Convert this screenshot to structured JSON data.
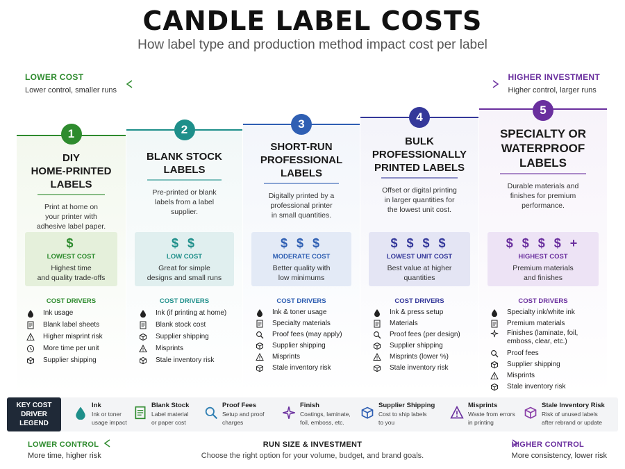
{
  "title": "CANDLE LABEL COSTS",
  "subtitle": "How label type and production method impact cost per label",
  "axis_top": {
    "left_label": "LOWER COST",
    "left_sub": "Lower control, smaller runs",
    "right_label": "HIGHER INVESTMENT",
    "right_sub": "Higher control, larger runs"
  },
  "drivers_title": "COST DRIVERS",
  "cards": [
    {
      "number": "1",
      "name_lines": [
        "DIY",
        "HOME-PRINTED",
        "LABELS"
      ],
      "description_lines": [
        "Print at home on",
        "your printer with",
        "adhesive label paper."
      ],
      "dollars": "$",
      "cost_label": "LOWEST COST",
      "cost_desc_lines": [
        "Highest time",
        "and quality trade-offs"
      ],
      "drivers": [
        {
          "icon": "ink-drop-icon",
          "text": "Ink usage"
        },
        {
          "icon": "label-sheet-icon",
          "text": "Blank label sheets"
        },
        {
          "icon": "warning-icon",
          "text": "Higher misprint risk"
        },
        {
          "icon": "clock-icon",
          "text": "More time per unit"
        },
        {
          "icon": "box-icon",
          "text": "Supplier shipping"
        }
      ],
      "color": "#2e8b2e",
      "bg": "#f3f8ee",
      "box_bg": "#e5f0db"
    },
    {
      "number": "2",
      "name_lines": [
        "BLANK STOCK",
        "LABELS"
      ],
      "description_lines": [
        "Pre-printed or blank",
        "labels from a label",
        "supplier."
      ],
      "dollars": "$ $",
      "cost_label": "LOW COST",
      "cost_desc_lines": [
        "Great for simple",
        "designs and small runs"
      ],
      "drivers": [
        {
          "icon": "ink-drop-icon",
          "text": "Ink (if printing at home)"
        },
        {
          "icon": "label-sheet-icon",
          "text": "Blank stock cost"
        },
        {
          "icon": "box-icon",
          "text": "Supplier shipping"
        },
        {
          "icon": "warning-icon",
          "text": "Misprints"
        },
        {
          "icon": "box-icon",
          "text": "Stale inventory risk"
        }
      ],
      "color": "#1e8f8a",
      "bg": "#f2f8f8",
      "box_bg": "#e0efef"
    },
    {
      "number": "3",
      "name_lines": [
        "SHORT-RUN",
        "PROFESSIONAL",
        "LABELS"
      ],
      "description_lines": [
        "Digitally printed by a",
        "professional printer",
        "in small quantities."
      ],
      "dollars": "$ $ $",
      "cost_label": "MODERATE COST",
      "cost_desc_lines": [
        "Better quality with",
        "low minimums"
      ],
      "drivers": [
        {
          "icon": "ink-drop-icon",
          "text": "Ink & toner usage"
        },
        {
          "icon": "label-sheet-icon",
          "text": "Specialty materials"
        },
        {
          "icon": "magnifier-icon",
          "text": "Proof fees (may apply)"
        },
        {
          "icon": "box-icon",
          "text": "Supplier shipping"
        },
        {
          "icon": "warning-icon",
          "text": "Misprints"
        },
        {
          "icon": "box-icon",
          "text": "Stale inventory risk"
        }
      ],
      "color": "#2f5fb3",
      "bg": "#f3f6fb",
      "box_bg": "#e3eaf6"
    },
    {
      "number": "4",
      "name_lines": [
        "BULK",
        "PROFESSIONALLY",
        "PRINTED LABELS"
      ],
      "description_lines": [
        "Offset or digital printing",
        "in larger quantities for",
        "the lowest unit cost."
      ],
      "dollars": "$ $ $ $",
      "cost_label": "LOWEST UNIT COST",
      "cost_desc_lines": [
        "Best value at higher",
        "quantities"
      ],
      "drivers": [
        {
          "icon": "ink-drop-icon",
          "text": "Ink & press setup"
        },
        {
          "icon": "label-sheet-icon",
          "text": "Materials"
        },
        {
          "icon": "magnifier-icon",
          "text": "Proof fees (per design)"
        },
        {
          "icon": "box-icon",
          "text": "Supplier shipping"
        },
        {
          "icon": "warning-icon",
          "text": "Misprints (lower %)"
        },
        {
          "icon": "box-icon",
          "text": "Stale inventory risk"
        }
      ],
      "color": "#34389a",
      "bg": "#f4f4fa",
      "box_bg": "#e4e5f4"
    },
    {
      "number": "5",
      "name_lines": [
        "SPECIALTY OR",
        "WATERPROOF",
        "LABELS"
      ],
      "description_lines": [
        "Durable materials and",
        "finishes for premium",
        "performance."
      ],
      "dollars": "$ $ $ $ +",
      "cost_label": "HIGHEST COST",
      "cost_desc_lines": [
        "Premium materials",
        "and finishes"
      ],
      "drivers": [
        {
          "icon": "ink-drop-icon",
          "text": "Specialty ink/white ink"
        },
        {
          "icon": "label-sheet-icon",
          "text": "Premium materials"
        },
        {
          "icon": "sparkle-icon",
          "text": "Finishes (laminate, foil,\nemboss, clear, etc.)"
        },
        {
          "icon": "magnifier-icon",
          "text": "Proof fees"
        },
        {
          "icon": "box-icon",
          "text": "Supplier shipping"
        },
        {
          "icon": "warning-icon",
          "text": "Misprints"
        },
        {
          "icon": "box-icon",
          "text": "Stale inventory risk"
        }
      ],
      "color": "#6a2f9e",
      "bg": "#f7f3fa",
      "box_bg": "#ede3f5"
    }
  ],
  "legend": {
    "key_lines": [
      "KEY COST",
      "DRIVER",
      "LEGEND"
    ],
    "items": [
      {
        "icon": "ink-drop-icon",
        "title": "Ink",
        "desc_lines": [
          "Ink or toner",
          "usage impact"
        ],
        "color": "#1e8f8a"
      },
      {
        "icon": "label-sheet-icon",
        "title": "Blank Stock",
        "desc_lines": [
          "Label material",
          "or paper cost"
        ],
        "color": "#2e8b2e"
      },
      {
        "icon": "magnifier-icon",
        "title": "Proof Fees",
        "desc_lines": [
          "Setup and proof",
          "charges"
        ],
        "color": "#2f7fb3"
      },
      {
        "icon": "sparkle-icon",
        "title": "Finish",
        "desc_lines": [
          "Coatings, laminate,",
          "foil, emboss, etc."
        ],
        "color": "#6a2f9e"
      },
      {
        "icon": "box-icon",
        "title": "Supplier Shipping",
        "desc_lines": [
          "Cost to ship labels",
          "to you"
        ],
        "color": "#2f5fb3"
      },
      {
        "icon": "warning-icon",
        "title": "Misprints",
        "desc_lines": [
          "Waste from errors",
          "in printing"
        ],
        "color": "#6a2f9e"
      },
      {
        "icon": "box-icon",
        "title": "Stale Inventory Risk",
        "desc_lines": [
          "Risk of unused labels",
          "after rebrand or update"
        ],
        "color": "#8a3fa8"
      }
    ]
  },
  "axis_bottom": {
    "left_label": "LOWER CONTROL",
    "left_sub": "More time, higher risk",
    "mid_label": "RUN SIZE & INVESTMENT",
    "mid_sub": "Choose the right option for your volume, budget, and brand goals.",
    "right_label": "HIGHER CONTROL",
    "right_sub": "More consistency, lower risk"
  },
  "colors": {
    "green": "#2e8b2e",
    "purple": "#6a2f9e",
    "dark": "#1f2937"
  }
}
